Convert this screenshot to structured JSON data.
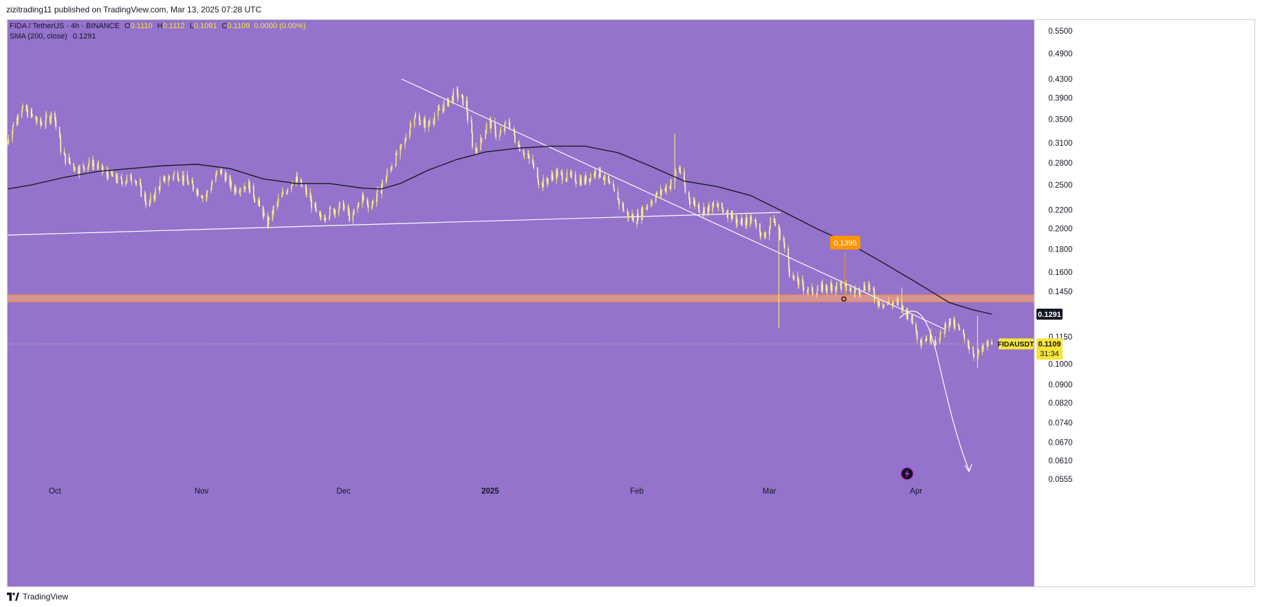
{
  "header": {
    "publisher_line": "zizitrading11 published on TradingView.com, Mar 13, 2025 07:28 UTC"
  },
  "legend": {
    "symbol_line": "FIDA / TetherUS · 4h · BINANCE",
    "ohlc": {
      "o_label": "O",
      "o": "0.1110",
      "h_label": "H",
      "h": "0.1112",
      "l_label": "L",
      "l": "0.1091",
      "c_label": "C",
      "c": "0.1109",
      "change": "0.0000 (0.00%)"
    },
    "sma_label": "SMA (200, close)",
    "sma_value": "0.1291"
  },
  "footer": {
    "brand": "TradingView"
  },
  "colors": {
    "background": "#9373cc",
    "candle": "#f5e27a",
    "sma": "#1a1a1a",
    "trendline": "#ffffff",
    "zone_fill": "#e39a88",
    "zone_border": "#f08a3c",
    "marker_orange": "#ff9500",
    "price_tag_yellow": "#f7e43a",
    "dark_tag": "#131722"
  },
  "chart_data": {
    "type": "line",
    "title": "FIDA / TetherUS · 4h · BINANCE",
    "y_scale": "log",
    "ylim": [
      0.052,
      0.59
    ],
    "y_ticks": [
      "0.5500",
      "0.4900",
      "0.4300",
      "0.3900",
      "0.3500",
      "0.3100",
      "0.2800",
      "0.2500",
      "0.2200",
      "0.2000",
      "0.1800",
      "0.1600",
      "0.1450",
      "0.1291",
      "0.1150",
      "0.1000",
      "0.0900",
      "0.0820",
      "0.0740",
      "0.0670",
      "0.0610",
      "0.0555"
    ],
    "x_ticks": [
      "Oct",
      "Nov",
      "Dec",
      "2025",
      "Feb",
      "Mar",
      "Apr"
    ],
    "x_tick_dates": [
      "2024-10-01",
      "2024-11-01",
      "2024-12-01",
      "2025-01-01",
      "2025-02-01",
      "2025-03-01",
      "2025-04-01"
    ],
    "xlim": [
      "2024-09-21",
      "2025-04-26"
    ],
    "price_series": {
      "name": "FIDAUSDT",
      "points": [
        [
          "2024-09-21",
          0.31
        ],
        [
          "2024-09-23",
          0.35
        ],
        [
          "2024-09-24",
          0.37
        ],
        [
          "2024-09-26",
          0.36
        ],
        [
          "2024-09-28",
          0.34
        ],
        [
          "2024-10-01",
          0.36
        ],
        [
          "2024-10-03",
          0.29
        ],
        [
          "2024-10-06",
          0.27
        ],
        [
          "2024-10-09",
          0.28
        ],
        [
          "2024-10-12",
          0.265
        ],
        [
          "2024-10-15",
          0.255
        ],
        [
          "2024-10-18",
          0.26
        ],
        [
          "2024-10-21",
          0.225
        ],
        [
          "2024-10-24",
          0.255
        ],
        [
          "2024-10-27",
          0.265
        ],
        [
          "2024-10-30",
          0.25
        ],
        [
          "2024-11-02",
          0.235
        ],
        [
          "2024-11-05",
          0.27
        ],
        [
          "2024-11-08",
          0.245
        ],
        [
          "2024-11-11",
          0.25
        ],
        [
          "2024-11-13",
          0.23
        ],
        [
          "2024-11-15",
          0.205
        ],
        [
          "2024-11-18",
          0.235
        ],
        [
          "2024-11-21",
          0.26
        ],
        [
          "2024-11-24",
          0.235
        ],
        [
          "2024-11-26",
          0.21
        ],
        [
          "2024-11-29",
          0.22
        ],
        [
          "2024-12-01",
          0.225
        ],
        [
          "2024-12-03",
          0.21
        ],
        [
          "2024-12-05",
          0.235
        ],
        [
          "2024-12-07",
          0.225
        ],
        [
          "2024-12-09",
          0.245
        ],
        [
          "2024-12-11",
          0.27
        ],
        [
          "2024-12-14",
          0.31
        ],
        [
          "2024-12-16",
          0.355
        ],
        [
          "2024-12-19",
          0.34
        ],
        [
          "2024-12-22",
          0.37
        ],
        [
          "2024-12-25",
          0.4
        ],
        [
          "2024-12-27",
          0.38
        ],
        [
          "2024-12-29",
          0.295
        ],
        [
          "2025-01-01",
          0.345
        ],
        [
          "2025-01-03",
          0.32
        ],
        [
          "2025-01-05",
          0.345
        ],
        [
          "2025-01-07",
          0.31
        ],
        [
          "2025-01-10",
          0.28
        ],
        [
          "2025-01-12",
          0.25
        ],
        [
          "2025-01-15",
          0.265
        ],
        [
          "2025-01-18",
          0.26
        ],
        [
          "2025-01-21",
          0.255
        ],
        [
          "2025-01-24",
          0.27
        ],
        [
          "2025-01-27",
          0.245
        ],
        [
          "2025-01-30",
          0.215
        ],
        [
          "2025-02-01",
          0.21
        ],
        [
          "2025-02-04",
          0.23
        ],
        [
          "2025-02-07",
          0.245
        ],
        [
          "2025-02-09",
          0.255
        ],
        [
          "2025-02-10",
          0.275
        ],
        [
          "2025-02-12",
          0.235
        ],
        [
          "2025-02-15",
          0.22
        ],
        [
          "2025-02-18",
          0.225
        ],
        [
          "2025-02-21",
          0.215
        ],
        [
          "2025-02-23",
          0.205
        ],
        [
          "2025-02-26",
          0.21
        ],
        [
          "2025-02-28",
          0.19
        ],
        [
          "2025-03-02",
          0.21
        ],
        [
          "2025-03-04",
          0.19
        ],
        [
          "2025-03-06",
          0.155
        ],
        [
          "2025-03-08",
          0.15
        ],
        [
          "2025-03-10",
          0.145
        ],
        [
          "2025-03-13",
          0.148
        ],
        [
          "2025-03-16",
          0.15
        ],
        [
          "2025-03-19",
          0.145
        ],
        [
          "2025-03-22",
          0.15
        ],
        [
          "2025-03-24",
          0.138
        ],
        [
          "2025-03-26",
          0.136
        ],
        [
          "2025-03-28",
          0.137
        ],
        [
          "2025-03-31",
          0.128
        ],
        [
          "2025-04-02",
          0.113
        ],
        [
          "2025-04-04",
          0.115
        ],
        [
          "2025-04-06",
          0.113
        ],
        [
          "2025-04-08",
          0.125
        ],
        [
          "2025-04-10",
          0.12
        ],
        [
          "2025-04-12",
          0.112
        ],
        [
          "2025-04-14",
          0.104
        ],
        [
          "2025-04-16",
          0.11
        ],
        [
          "2025-04-17",
          0.1109
        ]
      ]
    },
    "sma_series": {
      "name": "SMA (200, close)",
      "points": [
        [
          "2024-09-21",
          0.245
        ],
        [
          "2024-09-26",
          0.25
        ],
        [
          "2024-10-03",
          0.26
        ],
        [
          "2024-10-10",
          0.268
        ],
        [
          "2024-10-17",
          0.272
        ],
        [
          "2024-10-24",
          0.276
        ],
        [
          "2024-10-31",
          0.278
        ],
        [
          "2024-11-07",
          0.272
        ],
        [
          "2024-11-14",
          0.258
        ],
        [
          "2024-11-21",
          0.252
        ],
        [
          "2024-11-28",
          0.252
        ],
        [
          "2024-12-05",
          0.246
        ],
        [
          "2024-12-09",
          0.245
        ],
        [
          "2024-12-13",
          0.252
        ],
        [
          "2024-12-19",
          0.27
        ],
        [
          "2024-12-25",
          0.285
        ],
        [
          "2024-12-31",
          0.296
        ],
        [
          "2025-01-07",
          0.302
        ],
        [
          "2025-01-14",
          0.305
        ],
        [
          "2025-01-21",
          0.305
        ],
        [
          "2025-01-28",
          0.295
        ],
        [
          "2025-02-04",
          0.275
        ],
        [
          "2025-02-11",
          0.255
        ],
        [
          "2025-02-18",
          0.248
        ],
        [
          "2025-02-25",
          0.237
        ],
        [
          "2025-03-04",
          0.218
        ],
        [
          "2025-03-11",
          0.2
        ],
        [
          "2025-03-18",
          0.185
        ],
        [
          "2025-03-25",
          0.168
        ],
        [
          "2025-04-01",
          0.152
        ],
        [
          "2025-04-08",
          0.137
        ],
        [
          "2025-04-13",
          0.132
        ],
        [
          "2025-04-17",
          0.1291
        ]
      ]
    },
    "annotations": {
      "marker_label": "0.1395",
      "last_price": "0.1109",
      "symbol_tag": "FIDAUSDT",
      "countdown": "31:34",
      "sma_tag": "0.1291",
      "zone": [
        0.1375,
        0.1425
      ]
    }
  }
}
